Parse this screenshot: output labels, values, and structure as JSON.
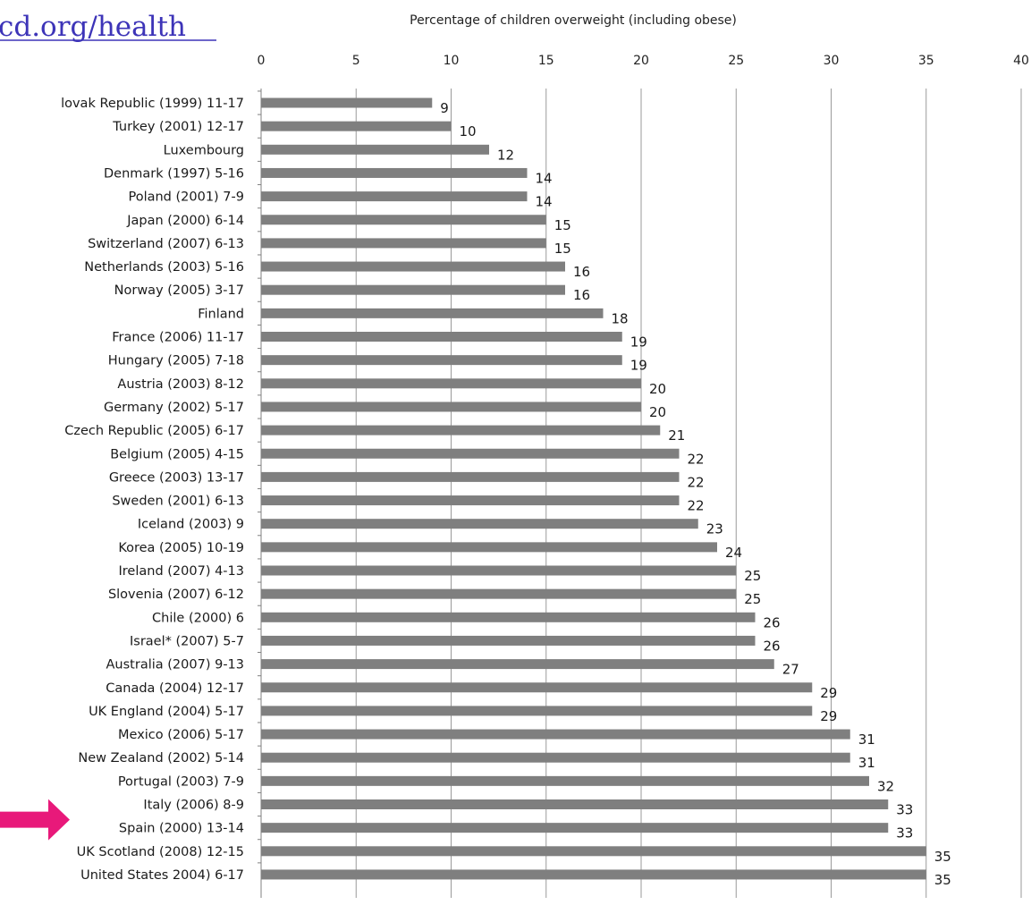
{
  "header": {
    "link_text": "cd.org/health"
  },
  "colors": {
    "bar": "#7f7f7f",
    "grid": "#9a9a9a",
    "axis": "#808080",
    "arrow": "#e8197a",
    "link": "#3d34b8"
  },
  "annotation": {
    "arrow_icon": "right-arrow-icon",
    "points_to": "Spain (2000) 13-14"
  },
  "chart_data": {
    "type": "bar",
    "orientation": "horizontal",
    "title": "Percentage of children overweight (including obese)",
    "xlim": [
      0,
      40
    ],
    "xticks": [
      "0",
      "5",
      "10",
      "15",
      "20",
      "25",
      "30",
      "35",
      "40"
    ],
    "grid": true,
    "data_labels": true,
    "categories": [
      "lovak Republic (1999) 11-17",
      "Turkey (2001) 12-17",
      "Luxembourg",
      "Denmark (1997) 5-16",
      "Poland (2001) 7-9",
      "Japan (2000) 6-14",
      "Switzerland (2007) 6-13",
      "Netherlands (2003) 5-16",
      "Norway (2005) 3-17",
      "Finland",
      "France (2006) 11-17",
      "Hungary (2005) 7-18",
      "Austria (2003) 8-12",
      "Germany (2002) 5-17",
      "Czech Republic (2005) 6-17",
      "Belgium (2005) 4-15",
      "Greece (2003) 13-17",
      "Sweden (2001) 6-13",
      "Iceland (2003) 9",
      "Korea (2005) 10-19",
      "Ireland (2007) 4-13",
      "Slovenia (2007) 6-12",
      "Chile (2000) 6",
      "Israel* (2007) 5-7",
      "Australia (2007) 9-13",
      "Canada (2004) 12-17",
      "UK England (2004) 5-17",
      "Mexico (2006) 5-17",
      "New Zealand (2002) 5-14",
      "Portugal (2003) 7-9",
      "Italy (2006) 8-9",
      "Spain (2000) 13-14",
      "UK Scotland (2008) 12-15",
      "United States 2004) 6-17"
    ],
    "values": [
      9,
      10,
      12,
      14,
      14,
      15,
      15,
      16,
      16,
      18,
      19,
      19,
      20,
      20,
      21,
      22,
      22,
      22,
      23,
      24,
      25,
      25,
      26,
      26,
      27,
      29,
      29,
      31,
      31,
      32,
      33,
      33,
      35,
      35
    ]
  }
}
